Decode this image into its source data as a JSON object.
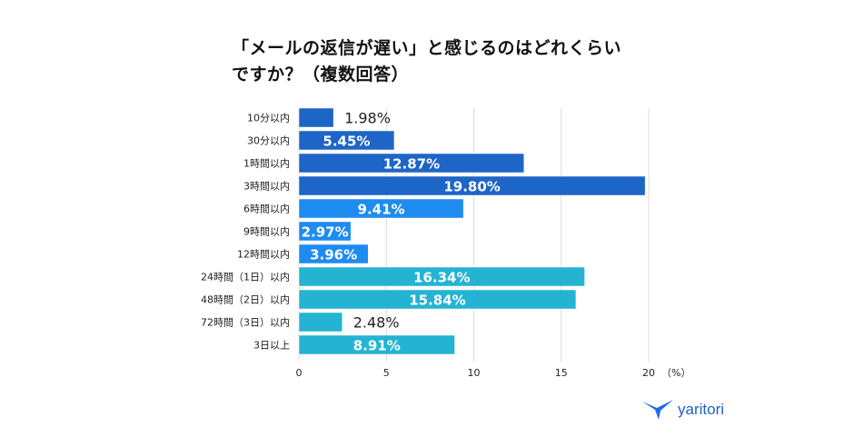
{
  "title_line1": "「メールの返信が遅い」と感じるのはどれくらい",
  "title_line2": "ですか？（複数回答）",
  "logo_text": "yaritori",
  "chart_data": {
    "type": "bar",
    "orientation": "horizontal",
    "categories": [
      "10分以内",
      "30分以内",
      "1時間以内",
      "3時間以内",
      "6時間以内",
      "9時間以内",
      "12時間以内",
      "24時間（1日）以内",
      "48時間（2日）以内",
      "72時間（3日）以内",
      "3日以上"
    ],
    "values": [
      1.98,
      5.45,
      12.87,
      19.8,
      9.41,
      2.97,
      3.96,
      16.34,
      15.84,
      2.48,
      8.91
    ],
    "data_labels": [
      "1.98%",
      "5.45%",
      "12.87%",
      "19.80%",
      "9.41%",
      "2.97%",
      "3.96%",
      "16.34%",
      "15.84%",
      "2.48%",
      "8.91%"
    ],
    "colors": [
      "#1d65c6",
      "#1d65c6",
      "#1d65c6",
      "#1d65c6",
      "#1e8bf0",
      "#1e8bf0",
      "#1e8bf0",
      "#24b3d3",
      "#24b3d3",
      "#24b3d3",
      "#24b3d3"
    ],
    "xlim": [
      0,
      20
    ],
    "xticks": [
      0,
      5,
      10,
      15,
      20
    ],
    "xunit": "（%）",
    "grid": true
  }
}
